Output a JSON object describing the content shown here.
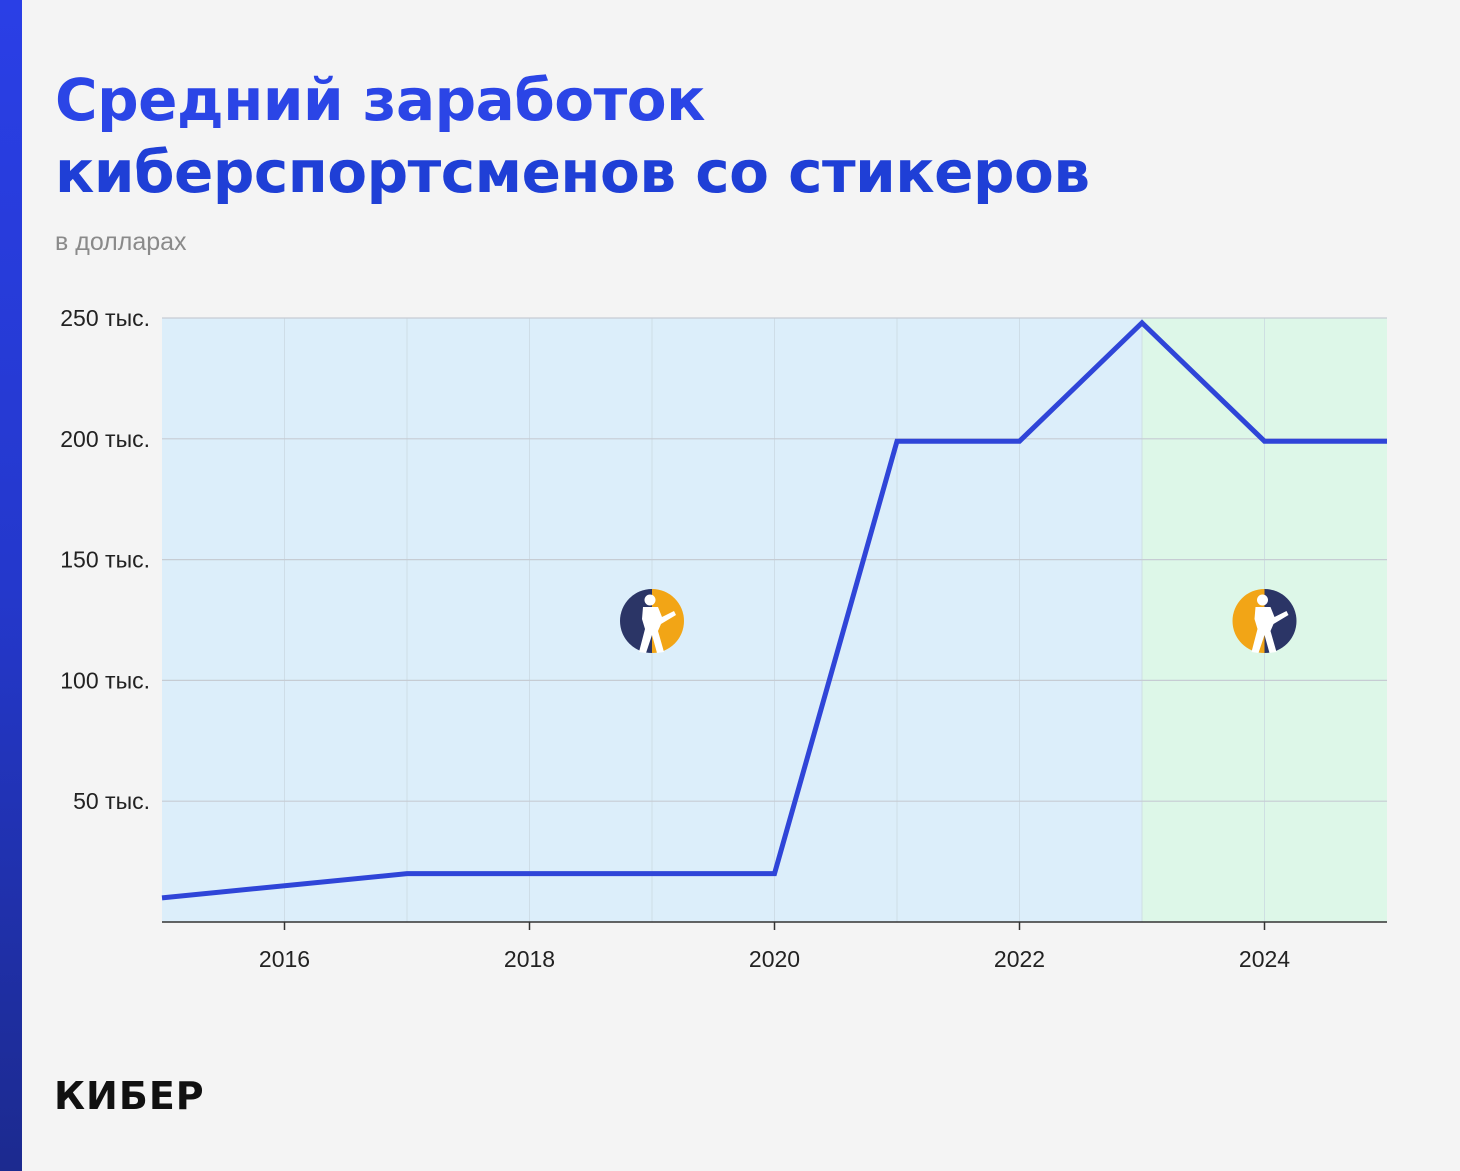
{
  "title_line1": "Средний заработок",
  "title_line2": "киберспортсменов со стикеров",
  "subtitle": "в долларах",
  "brand": "КИБЕР",
  "colors": {
    "accent": "#2b45e6",
    "line": "#2f45d8",
    "region_csgo": "#dceefa",
    "region_cs2": "#ddf7e8",
    "icon_dark": "#2b3566",
    "icon_orange": "#f2a516"
  },
  "chart_data": {
    "type": "line",
    "title": "Средний заработок киберспортсменов со стикеров",
    "subtitle": "в долларах",
    "xlim": [
      2015,
      2025
    ],
    "ylim": [
      0,
      250000
    ],
    "x_ticks": [
      2016,
      2018,
      2020,
      2022,
      2024
    ],
    "x_tick_labels": [
      "2016",
      "2018",
      "2020",
      "2022",
      "2024"
    ],
    "y_ticks": [
      50000,
      100000,
      150000,
      200000,
      250000
    ],
    "y_tick_labels": [
      "50 тыс.",
      "100 тыс.",
      "150 тыс.",
      "200 тыс.",
      "250 тыс."
    ],
    "grid": true,
    "series": [
      {
        "x": [
          2015,
          2017,
          2020,
          2021,
          2022,
          2023,
          2024,
          2025
        ],
        "y": [
          10000,
          20000,
          20000,
          199000,
          199000,
          248000,
          199000,
          199000
        ]
      }
    ],
    "regions": [
      {
        "from": 2015,
        "to": 2023,
        "icon": "csgo-logo-icon"
      },
      {
        "from": 2023,
        "to": 2025,
        "icon": "cs2-logo-icon"
      }
    ]
  }
}
